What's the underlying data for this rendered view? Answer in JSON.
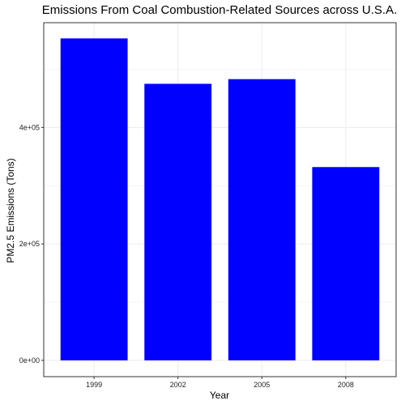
{
  "chart_data": {
    "type": "bar",
    "title": "Emissions From Coal Combustion-Related Sources across U.S.A.",
    "xlabel": "Year",
    "ylabel": "PM2.5 Emissions (Tons)",
    "categories": [
      "1999",
      "2002",
      "2005",
      "2008"
    ],
    "values": [
      553000,
      475000,
      483000,
      332000
    ],
    "ylim": [
      -28000,
      580000
    ],
    "yticks": [
      0,
      200000,
      400000
    ],
    "ytick_labels": [
      "0e+00",
      "2e+05",
      "4e+05"
    ],
    "bar_color": "#0000ff",
    "grid": true,
    "grid_color": "#ebebeb",
    "panel_border_color": "#333333",
    "legend": "none"
  }
}
